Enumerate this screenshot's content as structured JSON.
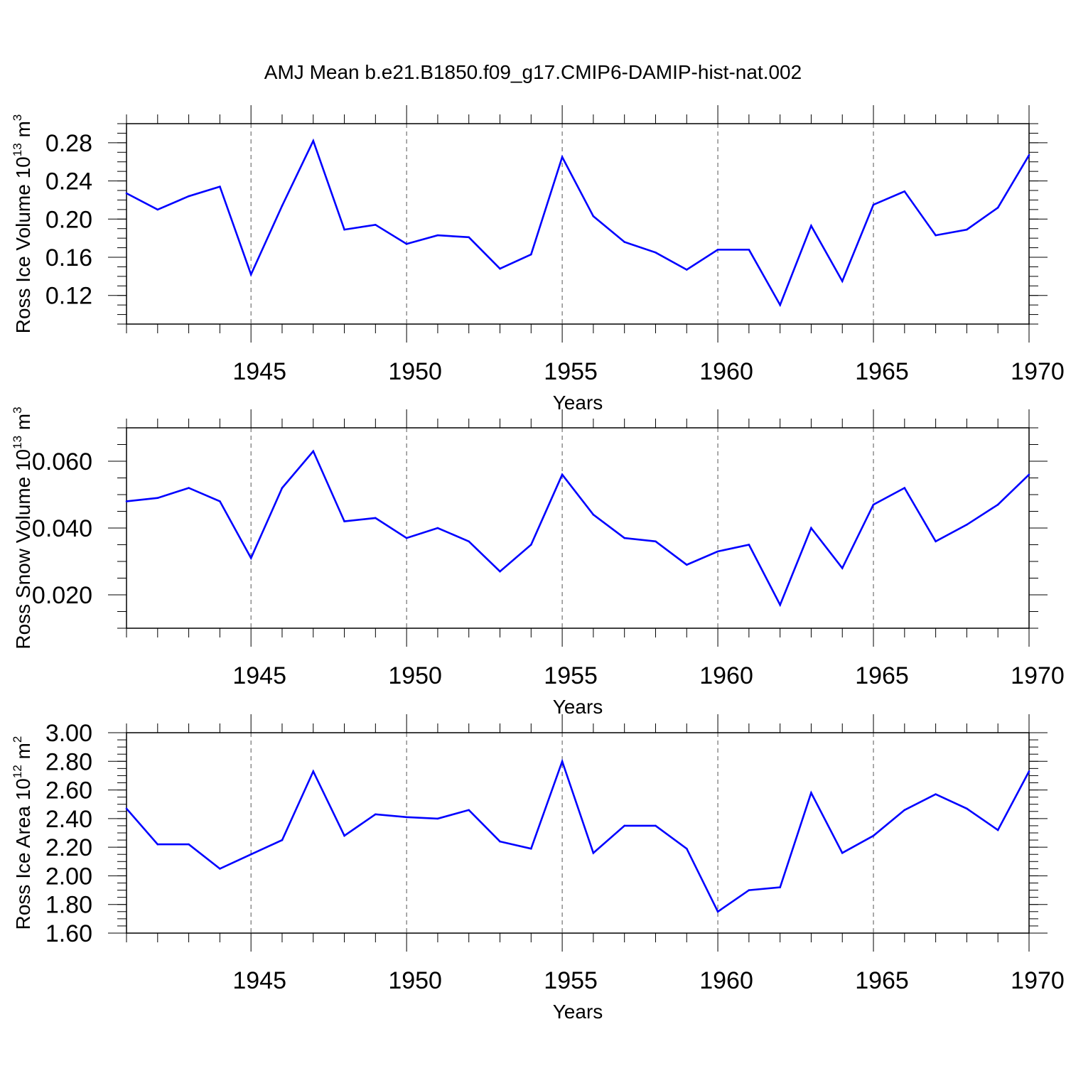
{
  "title": "AMJ Mean b.e21.B1850.f09_g17.CMIP6-DAMIP-hist-nat.002",
  "chart_data": [
    {
      "type": "line",
      "xlabel": "Years",
      "ylabel": {
        "prefix": "Ross Ice Volume 10",
        "exp": "13",
        "unit": " m",
        "unit_exp": "3"
      },
      "xlim": [
        1941,
        1970
      ],
      "ylim": [
        0.09,
        0.3
      ],
      "xticks": [
        1945,
        1950,
        1955,
        1960,
        1965,
        1970
      ],
      "yticks": [
        0.12,
        0.16,
        0.2,
        0.24,
        0.28
      ],
      "ytick_labels": [
        "0.12",
        "0.16",
        "0.20",
        "0.24",
        "0.28"
      ],
      "yminor_step": 0.01,
      "grid": "vertical dashed at major x ticks",
      "color": "#0000ff",
      "x": [
        1941,
        1942,
        1943,
        1944,
        1945,
        1946,
        1947,
        1948,
        1949,
        1950,
        1951,
        1952,
        1953,
        1954,
        1955,
        1956,
        1957,
        1958,
        1959,
        1960,
        1961,
        1962,
        1963,
        1964,
        1965,
        1966,
        1967,
        1968,
        1969,
        1970
      ],
      "y": [
        0.227,
        0.21,
        0.224,
        0.234,
        0.142,
        0.214,
        0.282,
        0.189,
        0.194,
        0.174,
        0.183,
        0.181,
        0.148,
        0.163,
        0.265,
        0.203,
        0.176,
        0.165,
        0.147,
        0.168,
        0.168,
        0.11,
        0.193,
        0.135,
        0.215,
        0.229,
        0.183,
        0.189,
        0.212,
        0.267
      ]
    },
    {
      "type": "line",
      "xlabel": "Years",
      "ylabel": {
        "prefix": "Ross Snow Volume 10",
        "exp": "13",
        "unit": " m",
        "unit_exp": "3"
      },
      "xlim": [
        1941,
        1970
      ],
      "ylim": [
        0.01,
        0.07
      ],
      "xticks": [
        1945,
        1950,
        1955,
        1960,
        1965,
        1970
      ],
      "yticks": [
        0.02,
        0.04,
        0.06
      ],
      "ytick_labels": [
        "0.020",
        "0.040",
        "0.060"
      ],
      "yminor_step": 0.005,
      "grid": "vertical dashed at major x ticks",
      "color": "#0000ff",
      "x": [
        1941,
        1942,
        1943,
        1944,
        1945,
        1946,
        1947,
        1948,
        1949,
        1950,
        1951,
        1952,
        1953,
        1954,
        1955,
        1956,
        1957,
        1958,
        1959,
        1960,
        1961,
        1962,
        1963,
        1964,
        1965,
        1966,
        1967,
        1968,
        1969,
        1970
      ],
      "y": [
        0.048,
        0.049,
        0.052,
        0.048,
        0.031,
        0.052,
        0.063,
        0.042,
        0.043,
        0.037,
        0.04,
        0.036,
        0.027,
        0.035,
        0.056,
        0.044,
        0.037,
        0.036,
        0.029,
        0.033,
        0.035,
        0.017,
        0.04,
        0.028,
        0.047,
        0.052,
        0.036,
        0.041,
        0.047,
        0.056
      ]
    },
    {
      "type": "line",
      "xlabel": "Years",
      "ylabel": {
        "prefix": "Ross Ice Area 10",
        "exp": "12",
        "unit": " m",
        "unit_exp": "2"
      },
      "xlim": [
        1941,
        1970
      ],
      "ylim": [
        1.6,
        3.0
      ],
      "xticks": [
        1945,
        1950,
        1955,
        1960,
        1965,
        1970
      ],
      "yticks": [
        1.6,
        1.8,
        2.0,
        2.2,
        2.4,
        2.6,
        2.8,
        3.0
      ],
      "ytick_labels": [
        "1.60",
        "1.80",
        "2.00",
        "2.20",
        "2.40",
        "2.60",
        "2.80",
        "3.00"
      ],
      "yminor_step": 0.05,
      "grid": "vertical dashed at major x ticks",
      "color": "#0000ff",
      "x": [
        1941,
        1942,
        1943,
        1944,
        1945,
        1946,
        1947,
        1948,
        1949,
        1950,
        1951,
        1952,
        1953,
        1954,
        1955,
        1956,
        1957,
        1958,
        1959,
        1960,
        1961,
        1962,
        1963,
        1964,
        1965,
        1966,
        1967,
        1968,
        1969,
        1970
      ],
      "y": [
        2.47,
        2.22,
        2.22,
        2.05,
        2.15,
        2.25,
        2.73,
        2.28,
        2.43,
        2.41,
        2.4,
        2.46,
        2.24,
        2.19,
        2.8,
        2.16,
        2.35,
        2.35,
        2.19,
        1.75,
        1.9,
        1.92,
        2.58,
        2.16,
        2.28,
        2.46,
        2.57,
        2.47,
        2.32,
        2.73
      ]
    }
  ]
}
